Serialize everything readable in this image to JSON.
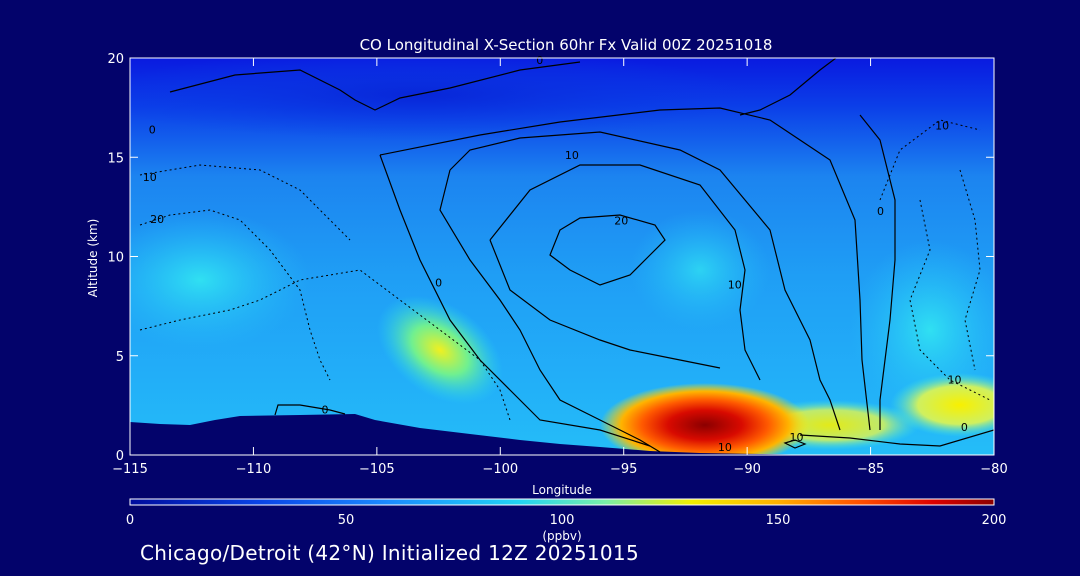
{
  "footer_text": "Chicago/Detroit (42°N) Initialized 12Z 20251015",
  "colors": {
    "background": "#03036b",
    "colorbar": [
      "#0010c8",
      "#0a4ff0",
      "#18a8ff",
      "#20e8f0",
      "#f6f200",
      "#ff9a00",
      "#e81000",
      "#8b0000"
    ],
    "terrain": "#03036b",
    "contour": "#000000"
  },
  "chart_data": {
    "type": "heatmap",
    "title": "CO Longitudinal X-Section 60hr  Fx Valid 00Z 20251018",
    "xlabel": "Longitude",
    "ylabel": "Altitude (km)",
    "xlim": [
      -115,
      -80
    ],
    "ylim": [
      0,
      20
    ],
    "xticks": [
      -115,
      -110,
      -105,
      -100,
      -95,
      -90,
      -85,
      -80
    ],
    "yticks": [
      0,
      5,
      10,
      15,
      20
    ],
    "colorbar": {
      "label": "(ppbv)",
      "range": [
        0,
        200
      ],
      "ticks": [
        0,
        50,
        100,
        150,
        200
      ]
    },
    "contour_labels": [
      {
        "text": "0",
        "lon": -114.1,
        "alt": 16.2
      },
      {
        "text": "0",
        "lon": -98.4,
        "alt": 19.7
      },
      {
        "text": "10",
        "lon": -97.1,
        "alt": 14.9
      },
      {
        "text": "10",
        "lon": -114.2,
        "alt": 13.8
      },
      {
        "text": "20",
        "lon": -113.9,
        "alt": 11.7
      },
      {
        "text": "20",
        "lon": -95.1,
        "alt": 11.6
      },
      {
        "text": "0",
        "lon": -102.5,
        "alt": 8.5
      },
      {
        "text": "10",
        "lon": -90.5,
        "alt": 8.4
      },
      {
        "text": "0",
        "lon": -84.6,
        "alt": 12.1
      },
      {
        "text": "10",
        "lon": -82.1,
        "alt": 16.4
      },
      {
        "text": "10",
        "lon": -81.6,
        "alt": 3.6
      },
      {
        "text": "0",
        "lon": -107.1,
        "alt": 2.1
      },
      {
        "text": "10",
        "lon": -90.9,
        "alt": 0.2
      },
      {
        "text": "10",
        "lon": -88.0,
        "alt": 0.7
      },
      {
        "text": "0",
        "lon": -81.2,
        "alt": 1.2
      }
    ]
  }
}
